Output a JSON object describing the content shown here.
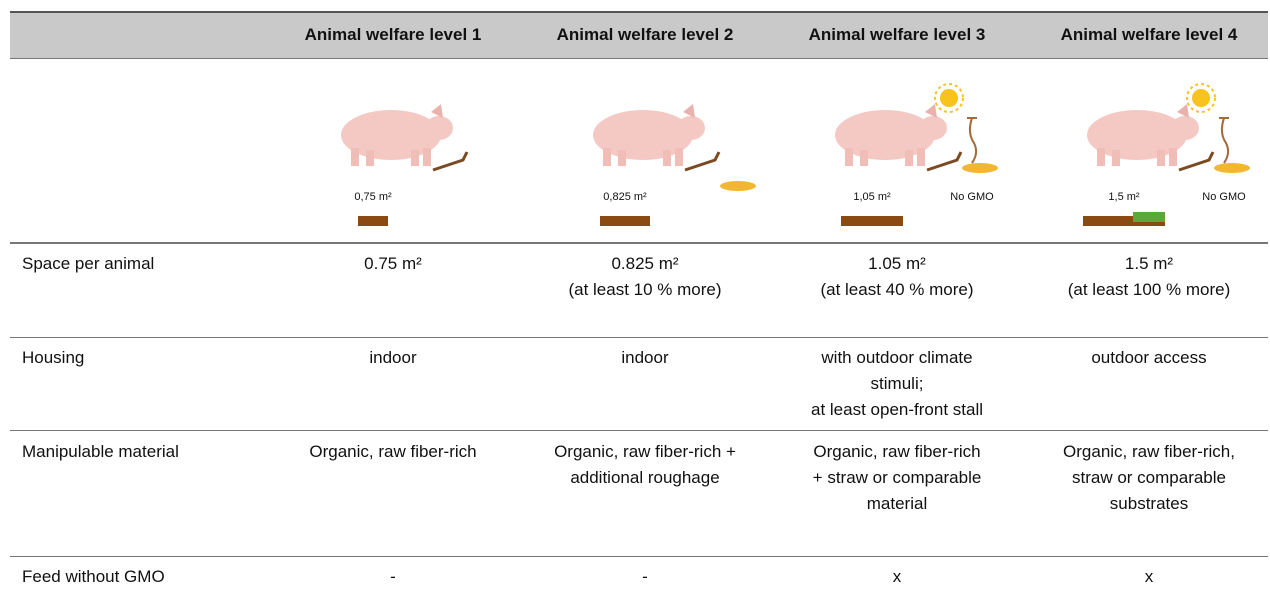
{
  "header": {
    "columns": [
      "Animal welfare level 1",
      "Animal welfare level 2",
      "Animal welfare level 3",
      "Animal welfare level 4"
    ]
  },
  "illustrations": [
    {
      "area_label": "0,75 m²"
    },
    {
      "area_label": "0,825 m²"
    },
    {
      "area_label": "1,05 m²",
      "gmo_label": "No GMO"
    },
    {
      "area_label": "1,5 m²",
      "gmo_label": "No GMO"
    }
  ],
  "rows": [
    {
      "label": "Space per animal",
      "cells": [
        [
          "0.75 m²"
        ],
        [
          "0.825 m²",
          "(at least 10 % more)"
        ],
        [
          "1.05 m²",
          "(at least 40 % more)"
        ],
        [
          "1.5 m²",
          "(at least 100 % more)"
        ]
      ]
    },
    {
      "label": "Housing",
      "cells": [
        [
          "indoor"
        ],
        [
          "indoor"
        ],
        [
          "with outdoor climate",
          "stimuli;",
          "at least open-front stall"
        ],
        [
          "outdoor access"
        ]
      ]
    },
    {
      "label": "Manipulable material",
      "cells": [
        [
          "Organic, raw fiber-rich"
        ],
        [
          "Organic, raw fiber-rich +",
          "additional roughage"
        ],
        [
          "Organic, raw fiber-rich",
          "+ straw or comparable",
          "material"
        ],
        [
          "Organic, raw fiber-rich,",
          "straw or comparable",
          "substrates"
        ]
      ]
    },
    {
      "label": "Feed without GMO",
      "cells": [
        [
          "-"
        ],
        [
          "-"
        ],
        [
          "x"
        ],
        [
          "x"
        ]
      ]
    }
  ]
}
